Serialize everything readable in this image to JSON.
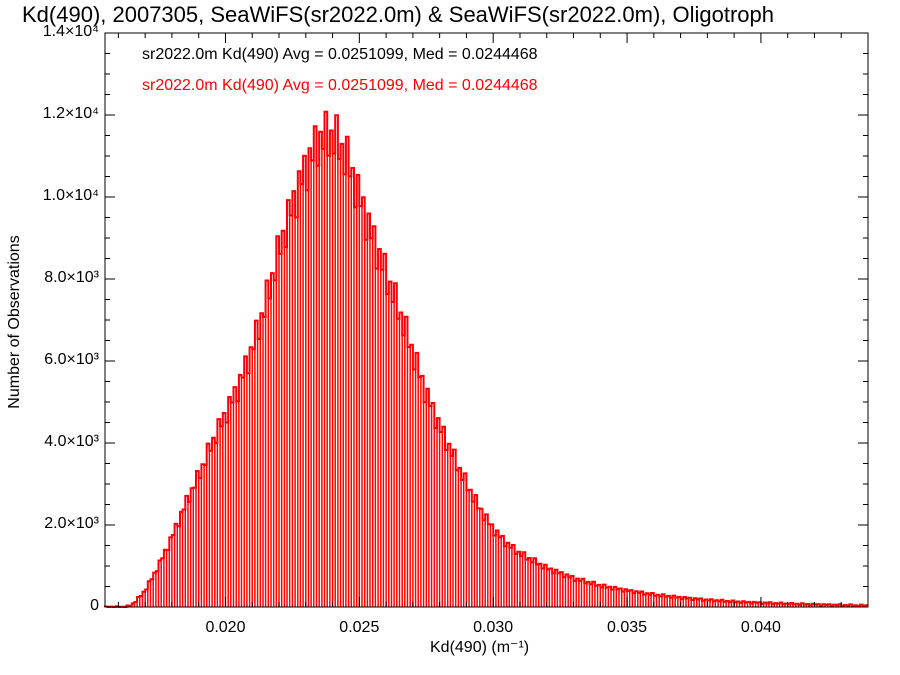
{
  "chart_data": {
    "type": "bar",
    "title": "Kd(490), 2007305, SeaWiFS(sr2022.0m) & SeaWiFS(sr2022.0m), Oligotroph",
    "xlabel": "Kd(490) (m⁻¹)",
    "ylabel": "Number of Observations",
    "xlim": [
      0.0155,
      0.044
    ],
    "ylim": [
      0,
      14000
    ],
    "xticks": [
      "0.020",
      "0.025",
      "0.030",
      "0.035",
      "0.040"
    ],
    "xtick_values": [
      0.02,
      0.025,
      0.03,
      0.035,
      0.04
    ],
    "yticks": [
      "0",
      "2.0×10³",
      "4.0×10³",
      "6.0×10³",
      "8.0×10³",
      "1.0×10⁴",
      "1.2×10⁴",
      "1.4×10⁴"
    ],
    "ytick_values": [
      0,
      2000,
      4000,
      6000,
      8000,
      10000,
      12000,
      14000
    ],
    "legend": [
      {
        "name": "sr2022.0m Kd(490) Avg = 0.0251099, Med = 0.0244468",
        "color": "#000000"
      },
      {
        "name": "sr2022.0m Kd(490) Avg = 0.0251099, Med = 0.0244468",
        "color": "#ff0000"
      }
    ],
    "legend_placement": "top-left",
    "grid": false,
    "bin_width": 0.0001,
    "hist_profile": [
      [
        0.0155,
        0
      ],
      [
        0.0163,
        0
      ],
      [
        0.0166,
        100
      ],
      [
        0.017,
        400
      ],
      [
        0.0175,
        1000
      ],
      [
        0.018,
        1700
      ],
      [
        0.0185,
        2500
      ],
      [
        0.019,
        3200
      ],
      [
        0.0195,
        4000
      ],
      [
        0.02,
        4700
      ],
      [
        0.0205,
        5400
      ],
      [
        0.021,
        6300
      ],
      [
        0.0215,
        7400
      ],
      [
        0.022,
        8700
      ],
      [
        0.0225,
        9800
      ],
      [
        0.023,
        10700
      ],
      [
        0.0235,
        11400
      ],
      [
        0.024,
        11500
      ],
      [
        0.0245,
        11000
      ],
      [
        0.025,
        10000
      ],
      [
        0.0255,
        9000
      ],
      [
        0.026,
        8100
      ],
      [
        0.0265,
        7200
      ],
      [
        0.027,
        6200
      ],
      [
        0.0275,
        5200
      ],
      [
        0.028,
        4400
      ],
      [
        0.0285,
        3700
      ],
      [
        0.029,
        3000
      ],
      [
        0.0295,
        2400
      ],
      [
        0.03,
        1900
      ],
      [
        0.0305,
        1550
      ],
      [
        0.031,
        1300
      ],
      [
        0.032,
        950
      ],
      [
        0.033,
        700
      ],
      [
        0.034,
        520
      ],
      [
        0.035,
        400
      ],
      [
        0.036,
        300
      ],
      [
        0.037,
        230
      ],
      [
        0.038,
        170
      ],
      [
        0.039,
        130
      ],
      [
        0.04,
        100
      ],
      [
        0.041,
        80
      ],
      [
        0.042,
        60
      ],
      [
        0.043,
        45
      ],
      [
        0.044,
        35
      ]
    ],
    "series": [
      {
        "color": "#ff0000"
      }
    ]
  }
}
